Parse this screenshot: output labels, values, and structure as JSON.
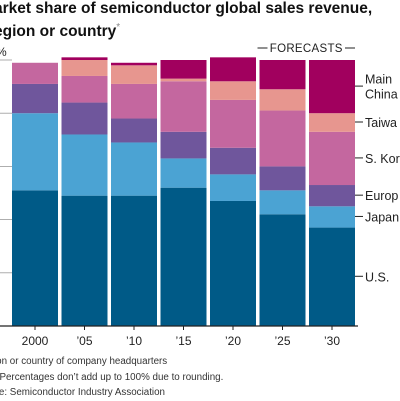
{
  "title": {
    "line1": "arket share of semiconductor global sales revenue,",
    "line2": "egion or country",
    "asterisk": "*"
  },
  "forecast_label": "FORECASTS",
  "notes": {
    "n1": "ion or country of company headquarters",
    "n2": ": Percentages don’t add up to 100% due to rounding.",
    "n3": "ce: Semiconductor Industry Association"
  },
  "colors": {
    "US": "#005a87",
    "Japan": "#4ba3d3",
    "Europe": "#6f569c",
    "SKorea": "#c4679f",
    "Taiwan": "#e7968f",
    "China": "#a1005e"
  },
  "chart_data": {
    "type": "bar",
    "stacked": true,
    "ylim": [
      0,
      100
    ],
    "y_unit_label": "%",
    "categories": [
      "2000",
      "’05",
      "’10",
      "’15",
      "’20",
      "’25",
      "’30"
    ],
    "forecast_categories": [
      "’25",
      "’30"
    ],
    "series": [
      {
        "name": "U.S.",
        "key": "US",
        "values": [
          51,
          49,
          49,
          52,
          47,
          42,
          37
        ]
      },
      {
        "name": "Japan",
        "key": "Japan",
        "values": [
          29,
          23,
          20,
          11,
          10,
          9,
          8
        ]
      },
      {
        "name": "Europe",
        "key": "Europe",
        "values": [
          11,
          12,
          9,
          10,
          10,
          9,
          8
        ]
      },
      {
        "name": "S. Korea",
        "key": "SKorea",
        "values": [
          8,
          10,
          13,
          19,
          18,
          21,
          20
        ]
      },
      {
        "name": "Taiwan",
        "key": "Taiwan",
        "values": [
          0,
          6,
          7,
          1,
          7,
          8,
          7
        ]
      },
      {
        "name": "Mainland China",
        "key": "China",
        "values": [
          0,
          1,
          1,
          7,
          9,
          11,
          20
        ]
      }
    ],
    "legend": [
      {
        "key": "China",
        "lines": [
          "Main",
          "China"
        ]
      },
      {
        "key": "Taiwan",
        "lines": [
          "Taiwa"
        ]
      },
      {
        "key": "SKorea",
        "lines": [
          "S. Kor"
        ]
      },
      {
        "key": "Europe",
        "lines": [
          "Europ"
        ]
      },
      {
        "key": "Japan",
        "lines": [
          "Japan"
        ]
      },
      {
        "key": "US",
        "lines": [
          "U.S."
        ]
      }
    ]
  }
}
